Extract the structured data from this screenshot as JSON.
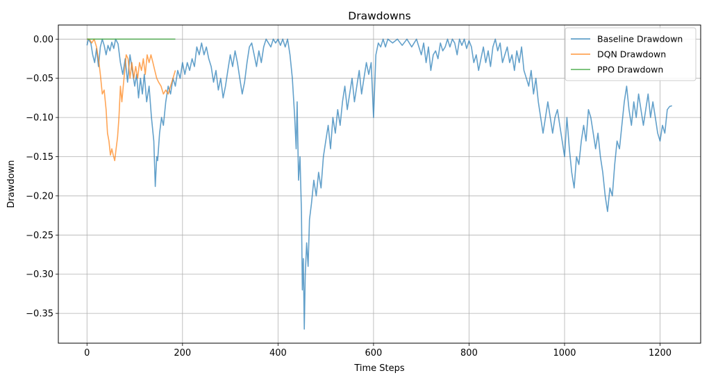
{
  "chart_data": {
    "type": "line",
    "title": "Drawdowns",
    "xlabel": "Time Steps",
    "ylabel": "Drawdown",
    "xlim": [
      -60,
      1285
    ],
    "ylim": [
      -0.388,
      0.018
    ],
    "xticks": [
      0,
      200,
      400,
      600,
      800,
      1000,
      1200
    ],
    "xtick_labels": [
      "0",
      "200",
      "400",
      "600",
      "800",
      "1000",
      "1200"
    ],
    "yticks": [
      0.0,
      -0.05,
      -0.1,
      -0.15,
      -0.2,
      -0.25,
      -0.3,
      -0.35
    ],
    "ytick_labels": [
      "0.00",
      "−0.05",
      "−0.10",
      "−0.15",
      "−0.20",
      "−0.25",
      "−0.30",
      "−0.35"
    ],
    "grid": true,
    "legend_position": "top-right",
    "series": [
      {
        "name": "Baseline Drawdown",
        "color": "#1f77b4",
        "alpha": 0.7,
        "points": [
          [
            0,
            -0.008
          ],
          [
            3,
            0
          ],
          [
            8,
            -0.005
          ],
          [
            12,
            -0.02
          ],
          [
            16,
            -0.03
          ],
          [
            20,
            -0.012
          ],
          [
            24,
            -0.035
          ],
          [
            28,
            -0.01
          ],
          [
            32,
            0
          ],
          [
            36,
            -0.008
          ],
          [
            40,
            -0.02
          ],
          [
            44,
            -0.008
          ],
          [
            48,
            -0.015
          ],
          [
            52,
            -0.004
          ],
          [
            56,
            -0.012
          ],
          [
            60,
            0
          ],
          [
            65,
            -0.006
          ],
          [
            70,
            -0.03
          ],
          [
            75,
            -0.045
          ],
          [
            80,
            -0.025
          ],
          [
            85,
            -0.055
          ],
          [
            90,
            -0.02
          ],
          [
            95,
            -0.04
          ],
          [
            100,
            -0.06
          ],
          [
            104,
            -0.045
          ],
          [
            108,
            -0.075
          ],
          [
            112,
            -0.05
          ],
          [
            116,
            -0.07
          ],
          [
            120,
            -0.045
          ],
          [
            125,
            -0.08
          ],
          [
            130,
            -0.06
          ],
          [
            135,
            -0.1
          ],
          [
            140,
            -0.13
          ],
          [
            143,
            -0.188
          ],
          [
            146,
            -0.15
          ],
          [
            148,
            -0.155
          ],
          [
            152,
            -0.12
          ],
          [
            156,
            -0.1
          ],
          [
            160,
            -0.11
          ],
          [
            165,
            -0.08
          ],
          [
            170,
            -0.06
          ],
          [
            175,
            -0.07
          ],
          [
            180,
            -0.05
          ],
          [
            185,
            -0.06
          ],
          [
            190,
            -0.04
          ],
          [
            195,
            -0.05
          ],
          [
            200,
            -0.03
          ],
          [
            205,
            -0.045
          ],
          [
            210,
            -0.03
          ],
          [
            215,
            -0.04
          ],
          [
            220,
            -0.025
          ],
          [
            225,
            -0.035
          ],
          [
            230,
            -0.01
          ],
          [
            235,
            -0.02
          ],
          [
            240,
            -0.005
          ],
          [
            245,
            -0.02
          ],
          [
            250,
            -0.01
          ],
          [
            255,
            -0.025
          ],
          [
            260,
            -0.035
          ],
          [
            265,
            -0.055
          ],
          [
            270,
            -0.04
          ],
          [
            275,
            -0.065
          ],
          [
            280,
            -0.05
          ],
          [
            285,
            -0.075
          ],
          [
            290,
            -0.06
          ],
          [
            295,
            -0.04
          ],
          [
            300,
            -0.02
          ],
          [
            305,
            -0.035
          ],
          [
            310,
            -0.015
          ],
          [
            315,
            -0.03
          ],
          [
            320,
            -0.05
          ],
          [
            325,
            -0.07
          ],
          [
            330,
            -0.055
          ],
          [
            335,
            -0.03
          ],
          [
            340,
            -0.01
          ],
          [
            345,
            -0.005
          ],
          [
            350,
            -0.02
          ],
          [
            355,
            -0.035
          ],
          [
            360,
            -0.015
          ],
          [
            365,
            -0.03
          ],
          [
            370,
            -0.01
          ],
          [
            375,
            0
          ],
          [
            380,
            -0.005
          ],
          [
            385,
            -0.01
          ],
          [
            390,
            0
          ],
          [
            395,
            -0.005
          ],
          [
            400,
            0
          ],
          [
            405,
            -0.008
          ],
          [
            410,
            0
          ],
          [
            415,
            -0.01
          ],
          [
            420,
            0
          ],
          [
            425,
            -0.02
          ],
          [
            430,
            -0.05
          ],
          [
            435,
            -0.1
          ],
          [
            438,
            -0.14
          ],
          [
            440,
            -0.08
          ],
          [
            443,
            -0.18
          ],
          [
            446,
            -0.15
          ],
          [
            449,
            -0.22
          ],
          [
            451,
            -0.32
          ],
          [
            453,
            -0.28
          ],
          [
            455,
            -0.37
          ],
          [
            457,
            -0.3
          ],
          [
            460,
            -0.26
          ],
          [
            463,
            -0.29
          ],
          [
            466,
            -0.23
          ],
          [
            470,
            -0.21
          ],
          [
            475,
            -0.18
          ],
          [
            480,
            -0.2
          ],
          [
            485,
            -0.17
          ],
          [
            490,
            -0.19
          ],
          [
            495,
            -0.15
          ],
          [
            500,
            -0.13
          ],
          [
            505,
            -0.11
          ],
          [
            510,
            -0.14
          ],
          [
            515,
            -0.1
          ],
          [
            520,
            -0.12
          ],
          [
            525,
            -0.09
          ],
          [
            530,
            -0.11
          ],
          [
            535,
            -0.08
          ],
          [
            540,
            -0.06
          ],
          [
            545,
            -0.09
          ],
          [
            550,
            -0.07
          ],
          [
            555,
            -0.05
          ],
          [
            560,
            -0.08
          ],
          [
            565,
            -0.06
          ],
          [
            570,
            -0.04
          ],
          [
            575,
            -0.07
          ],
          [
            580,
            -0.05
          ],
          [
            585,
            -0.03
          ],
          [
            590,
            -0.045
          ],
          [
            595,
            -0.03
          ],
          [
            600,
            -0.1
          ],
          [
            605,
            -0.02
          ],
          [
            610,
            -0.005
          ],
          [
            615,
            -0.01
          ],
          [
            620,
            0
          ],
          [
            625,
            -0.01
          ],
          [
            630,
            0
          ],
          [
            640,
            -0.005
          ],
          [
            650,
            0
          ],
          [
            660,
            -0.008
          ],
          [
            670,
            0
          ],
          [
            680,
            -0.01
          ],
          [
            690,
            0
          ],
          [
            700,
            -0.02
          ],
          [
            705,
            -0.005
          ],
          [
            710,
            -0.03
          ],
          [
            715,
            -0.01
          ],
          [
            720,
            -0.04
          ],
          [
            725,
            -0.02
          ],
          [
            730,
            -0.015
          ],
          [
            735,
            -0.025
          ],
          [
            740,
            -0.005
          ],
          [
            745,
            -0.015
          ],
          [
            750,
            -0.01
          ],
          [
            755,
            0
          ],
          [
            760,
            -0.01
          ],
          [
            765,
            0
          ],
          [
            770,
            -0.005
          ],
          [
            775,
            -0.02
          ],
          [
            780,
            0
          ],
          [
            785,
            -0.008
          ],
          [
            790,
            0
          ],
          [
            795,
            -0.012
          ],
          [
            800,
            -0.002
          ],
          [
            805,
            -0.01
          ],
          [
            810,
            -0.03
          ],
          [
            815,
            -0.02
          ],
          [
            820,
            -0.04
          ],
          [
            825,
            -0.025
          ],
          [
            830,
            -0.01
          ],
          [
            835,
            -0.03
          ],
          [
            840,
            -0.015
          ],
          [
            845,
            -0.035
          ],
          [
            850,
            -0.01
          ],
          [
            855,
            0
          ],
          [
            860,
            -0.015
          ],
          [
            865,
            -0.005
          ],
          [
            870,
            -0.03
          ],
          [
            875,
            -0.02
          ],
          [
            880,
            -0.01
          ],
          [
            885,
            -0.03
          ],
          [
            890,
            -0.02
          ],
          [
            895,
            -0.04
          ],
          [
            900,
            -0.015
          ],
          [
            905,
            -0.03
          ],
          [
            910,
            -0.01
          ],
          [
            915,
            -0.04
          ],
          [
            920,
            -0.05
          ],
          [
            925,
            -0.06
          ],
          [
            930,
            -0.04
          ],
          [
            935,
            -0.07
          ],
          [
            940,
            -0.05
          ],
          [
            945,
            -0.08
          ],
          [
            950,
            -0.1
          ],
          [
            955,
            -0.12
          ],
          [
            960,
            -0.1
          ],
          [
            965,
            -0.08
          ],
          [
            970,
            -0.1
          ],
          [
            975,
            -0.12
          ],
          [
            980,
            -0.1
          ],
          [
            985,
            -0.09
          ],
          [
            990,
            -0.11
          ],
          [
            995,
            -0.13
          ],
          [
            1000,
            -0.15
          ],
          [
            1005,
            -0.1
          ],
          [
            1010,
            -0.14
          ],
          [
            1015,
            -0.17
          ],
          [
            1020,
            -0.19
          ],
          [
            1025,
            -0.15
          ],
          [
            1030,
            -0.16
          ],
          [
            1035,
            -0.13
          ],
          [
            1040,
            -0.11
          ],
          [
            1045,
            -0.13
          ],
          [
            1050,
            -0.09
          ],
          [
            1055,
            -0.1
          ],
          [
            1060,
            -0.12
          ],
          [
            1065,
            -0.14
          ],
          [
            1070,
            -0.12
          ],
          [
            1075,
            -0.15
          ],
          [
            1080,
            -0.17
          ],
          [
            1085,
            -0.2
          ],
          [
            1090,
            -0.22
          ],
          [
            1095,
            -0.19
          ],
          [
            1100,
            -0.2
          ],
          [
            1105,
            -0.16
          ],
          [
            1110,
            -0.13
          ],
          [
            1115,
            -0.14
          ],
          [
            1120,
            -0.11
          ],
          [
            1125,
            -0.08
          ],
          [
            1130,
            -0.06
          ],
          [
            1135,
            -0.09
          ],
          [
            1140,
            -0.11
          ],
          [
            1145,
            -0.08
          ],
          [
            1150,
            -0.1
          ],
          [
            1155,
            -0.07
          ],
          [
            1160,
            -0.09
          ],
          [
            1165,
            -0.11
          ],
          [
            1170,
            -0.09
          ],
          [
            1175,
            -0.07
          ],
          [
            1180,
            -0.1
          ],
          [
            1185,
            -0.08
          ],
          [
            1190,
            -0.1
          ],
          [
            1195,
            -0.12
          ],
          [
            1200,
            -0.13
          ],
          [
            1205,
            -0.11
          ],
          [
            1210,
            -0.12
          ],
          [
            1215,
            -0.09
          ],
          [
            1220,
            -0.086
          ],
          [
            1225,
            -0.085
          ]
        ]
      },
      {
        "name": "DQN Drawdown",
        "color": "#ff7f0e",
        "alpha": 0.7,
        "points": [
          [
            0,
            0
          ],
          [
            5,
            0
          ],
          [
            10,
            -0.005
          ],
          [
            15,
            0
          ],
          [
            20,
            -0.01
          ],
          [
            25,
            -0.03
          ],
          [
            28,
            -0.045
          ],
          [
            32,
            -0.07
          ],
          [
            36,
            -0.065
          ],
          [
            40,
            -0.09
          ],
          [
            43,
            -0.12
          ],
          [
            46,
            -0.13
          ],
          [
            49,
            -0.148
          ],
          [
            52,
            -0.14
          ],
          [
            55,
            -0.148
          ],
          [
            58,
            -0.155
          ],
          [
            61,
            -0.14
          ],
          [
            64,
            -0.125
          ],
          [
            67,
            -0.1
          ],
          [
            70,
            -0.06
          ],
          [
            73,
            -0.08
          ],
          [
            76,
            -0.06
          ],
          [
            79,
            -0.04
          ],
          [
            82,
            -0.02
          ],
          [
            86,
            -0.025
          ],
          [
            90,
            -0.05
          ],
          [
            94,
            -0.03
          ],
          [
            98,
            -0.05
          ],
          [
            102,
            -0.035
          ],
          [
            106,
            -0.05
          ],
          [
            110,
            -0.03
          ],
          [
            114,
            -0.04
          ],
          [
            118,
            -0.025
          ],
          [
            122,
            -0.045
          ],
          [
            126,
            -0.02
          ],
          [
            130,
            -0.03
          ],
          [
            134,
            -0.02
          ],
          [
            138,
            -0.03
          ],
          [
            142,
            -0.04
          ],
          [
            146,
            -0.05
          ],
          [
            150,
            -0.055
          ],
          [
            155,
            -0.06
          ],
          [
            160,
            -0.07
          ],
          [
            165,
            -0.065
          ],
          [
            170,
            -0.07
          ],
          [
            175,
            -0.06
          ],
          [
            180,
            -0.05
          ],
          [
            185,
            -0.04
          ]
        ]
      },
      {
        "name": "PPO Drawdown",
        "color": "#2ca02c",
        "alpha": 0.7,
        "points": [
          [
            0,
            0
          ],
          [
            185,
            0
          ]
        ]
      }
    ]
  }
}
